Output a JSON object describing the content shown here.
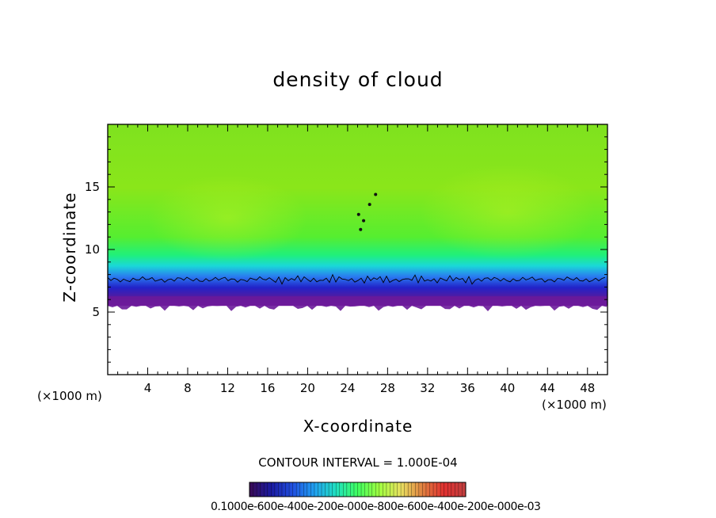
{
  "chart_data": {
    "type": "heatmap",
    "title": "density of cloud",
    "xlabel": "X-coordinate",
    "ylabel": "Z-coordinate",
    "x_unit": "(×1000 m)",
    "y_unit": "(×1000 m)",
    "xlim": [
      0,
      50
    ],
    "ylim": [
      0,
      20
    ],
    "x_ticks": [
      4,
      8,
      12,
      16,
      20,
      24,
      28,
      32,
      36,
      40,
      44,
      48
    ],
    "y_ticks": [
      5,
      10,
      15
    ],
    "cloud_base_km": 5.5,
    "contour_line_km": 7.6,
    "contour_interval_text": "CONTOUR INTERVAL = 1.000E-04",
    "colorbar": {
      "tick_text": "0.1000e-600e-400e-200e-000e-800e-600e-400e-200e-000e-03",
      "colors": [
        "#3a0a55",
        "#1a1aa0",
        "#2050e0",
        "#20a0f0",
        "#20e0c0",
        "#40ff60",
        "#a0ff40",
        "#e8e060",
        "#e08040",
        "#e03030",
        "#c04040"
      ]
    }
  }
}
